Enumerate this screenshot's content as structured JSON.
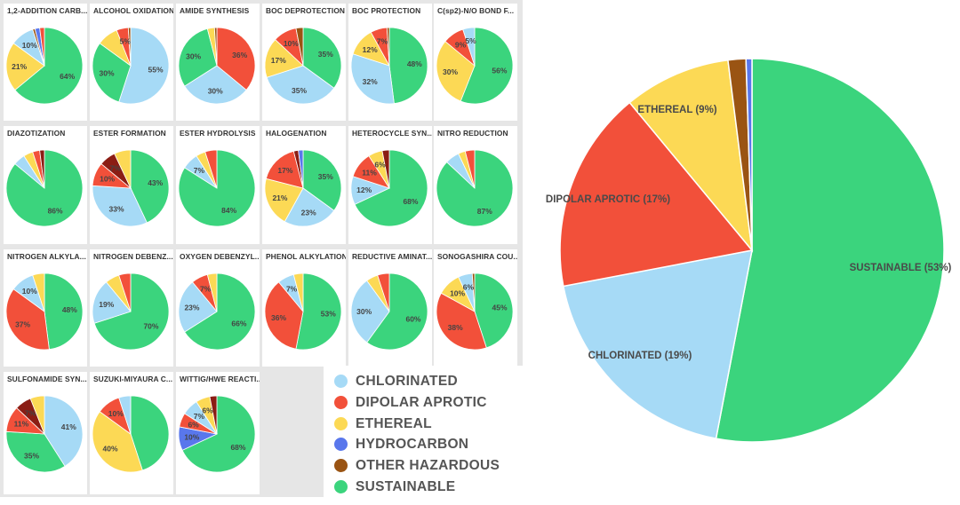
{
  "colors": {
    "chlorinated": "#a6daf6",
    "dipolar": "#f2503a",
    "ethereal": "#fcd955",
    "hydrocarbon": "#5977ec",
    "other": "#9a5413",
    "sustainable": "#3bd47d",
    "darkred": "#8b1d14"
  },
  "legend": [
    {
      "key": "chlorinated",
      "label": "CHLORINATED"
    },
    {
      "key": "dipolar",
      "label": "DIPOLAR APROTIC"
    },
    {
      "key": "ethereal",
      "label": "ETHEREAL"
    },
    {
      "key": "hydrocarbon",
      "label": "HYDROCARBON"
    },
    {
      "key": "other",
      "label": "OTHER HAZARDOUS"
    },
    {
      "key": "sustainable",
      "label": "SUSTAINABLE"
    }
  ],
  "chart_data": [
    {
      "type": "pie",
      "id": "overall",
      "slices": [
        {
          "category": "sustainable",
          "value": 53,
          "label": "SUSTAINABLE (53%)"
        },
        {
          "category": "chlorinated",
          "value": 19,
          "label": "CHLORINATED (19%)"
        },
        {
          "category": "dipolar",
          "value": 17,
          "label": "DIPOLAR APROTIC (17%)"
        },
        {
          "category": "ethereal",
          "value": 9,
          "label": "ETHEREAL (9%)"
        },
        {
          "category": "other",
          "value": 1.5,
          "label": ""
        },
        {
          "category": "hydrocarbon",
          "value": 0.5,
          "label": ""
        }
      ]
    },
    {
      "type": "pie",
      "title": "1,2-ADDITION CARB...",
      "slices": [
        {
          "category": "sustainable",
          "value": 64,
          "label": "64%"
        },
        {
          "category": "ethereal",
          "value": 21,
          "label": "21%"
        },
        {
          "category": "chlorinated",
          "value": 10,
          "label": "10%"
        },
        {
          "category": "other",
          "value": 1,
          "label": ""
        },
        {
          "category": "hydrocarbon",
          "value": 2,
          "label": ""
        },
        {
          "category": "dipolar",
          "value": 2,
          "label": ""
        }
      ]
    },
    {
      "type": "pie",
      "title": "ALCOHOL OXIDATION",
      "slices": [
        {
          "category": "chlorinated",
          "value": 55,
          "label": "55%"
        },
        {
          "category": "sustainable",
          "value": 30,
          "label": "30%"
        },
        {
          "category": "ethereal",
          "value": 9,
          "label": ""
        },
        {
          "category": "dipolar",
          "value": 5,
          "label": "5%"
        },
        {
          "category": "other",
          "value": 1,
          "label": ""
        }
      ]
    },
    {
      "type": "pie",
      "title": "AMIDE SYNTHESIS",
      "slices": [
        {
          "category": "dipolar",
          "value": 36,
          "label": "36%"
        },
        {
          "category": "chlorinated",
          "value": 30,
          "label": "30%"
        },
        {
          "category": "sustainable",
          "value": 30,
          "label": "30%"
        },
        {
          "category": "ethereal",
          "value": 3,
          "label": ""
        },
        {
          "category": "other",
          "value": 1,
          "label": ""
        }
      ]
    },
    {
      "type": "pie",
      "title": "BOC DEPROTECTION",
      "slices": [
        {
          "category": "sustainable",
          "value": 35,
          "label": "35%"
        },
        {
          "category": "chlorinated",
          "value": 35,
          "label": "35%"
        },
        {
          "category": "ethereal",
          "value": 17,
          "label": "17%"
        },
        {
          "category": "dipolar",
          "value": 10,
          "label": "10%"
        },
        {
          "category": "other",
          "value": 3,
          "label": ""
        }
      ]
    },
    {
      "type": "pie",
      "title": "BOC PROTECTION",
      "slices": [
        {
          "category": "sustainable",
          "value": 48,
          "label": "48%"
        },
        {
          "category": "chlorinated",
          "value": 32,
          "label": "32%"
        },
        {
          "category": "ethereal",
          "value": 12,
          "label": "12%"
        },
        {
          "category": "dipolar",
          "value": 7,
          "label": "7%"
        },
        {
          "category": "other",
          "value": 1,
          "label": ""
        }
      ]
    },
    {
      "type": "pie",
      "title": "C(sp2)-N/O BOND F...",
      "slices": [
        {
          "category": "sustainable",
          "value": 56,
          "label": "56%"
        },
        {
          "category": "ethereal",
          "value": 30,
          "label": "30%"
        },
        {
          "category": "dipolar",
          "value": 9,
          "label": "9%"
        },
        {
          "category": "chlorinated",
          "value": 5,
          "label": "5%"
        }
      ]
    },
    {
      "type": "pie",
      "title": "DIAZOTIZATION",
      "slices": [
        {
          "category": "sustainable",
          "value": 86,
          "label": "86%"
        },
        {
          "category": "chlorinated",
          "value": 5,
          "label": ""
        },
        {
          "category": "ethereal",
          "value": 4,
          "label": ""
        },
        {
          "category": "dipolar",
          "value": 3,
          "label": ""
        },
        {
          "category": "darkred",
          "value": 2,
          "label": ""
        }
      ]
    },
    {
      "type": "pie",
      "title": "ESTER FORMATION",
      "slices": [
        {
          "category": "sustainable",
          "value": 43,
          "label": "43%"
        },
        {
          "category": "chlorinated",
          "value": 33,
          "label": "33%"
        },
        {
          "category": "dipolar",
          "value": 10,
          "label": "10%"
        },
        {
          "category": "darkred",
          "value": 7,
          "label": "7%"
        },
        {
          "category": "ethereal",
          "value": 7,
          "label": ""
        }
      ]
    },
    {
      "type": "pie",
      "title": "ESTER HYDROLYSIS",
      "slices": [
        {
          "category": "sustainable",
          "value": 84,
          "label": "84%"
        },
        {
          "category": "chlorinated",
          "value": 7,
          "label": "7%"
        },
        {
          "category": "ethereal",
          "value": 4,
          "label": ""
        },
        {
          "category": "dipolar",
          "value": 5,
          "label": ""
        }
      ]
    },
    {
      "type": "pie",
      "title": "HALOGENATION",
      "slices": [
        {
          "category": "sustainable",
          "value": 35,
          "label": "35%"
        },
        {
          "category": "chlorinated",
          "value": 23,
          "label": "23%"
        },
        {
          "category": "ethereal",
          "value": 21,
          "label": "21%"
        },
        {
          "category": "dipolar",
          "value": 17,
          "label": "17%"
        },
        {
          "category": "darkred",
          "value": 2,
          "label": ""
        },
        {
          "category": "hydrocarbon",
          "value": 2,
          "label": ""
        }
      ]
    },
    {
      "type": "pie",
      "title": "HETEROCYCLE SYN...",
      "slices": [
        {
          "category": "sustainable",
          "value": 68,
          "label": "68%"
        },
        {
          "category": "chlorinated",
          "value": 12,
          "label": "12%"
        },
        {
          "category": "dipolar",
          "value": 11,
          "label": "11%"
        },
        {
          "category": "ethereal",
          "value": 6,
          "label": "6%"
        },
        {
          "category": "darkred",
          "value": 3,
          "label": ""
        }
      ]
    },
    {
      "type": "pie",
      "title": "NITRO REDUCTION",
      "slices": [
        {
          "category": "sustainable",
          "value": 87,
          "label": "87%"
        },
        {
          "category": "chlorinated",
          "value": 6,
          "label": ""
        },
        {
          "category": "ethereal",
          "value": 3,
          "label": ""
        },
        {
          "category": "dipolar",
          "value": 4,
          "label": ""
        }
      ]
    },
    {
      "type": "pie",
      "title": "NITROGEN ALKYLA...",
      "slices": [
        {
          "category": "sustainable",
          "value": 48,
          "label": "48%"
        },
        {
          "category": "dipolar",
          "value": 37,
          "label": "37%"
        },
        {
          "category": "chlorinated",
          "value": 10,
          "label": "10%"
        },
        {
          "category": "ethereal",
          "value": 5,
          "label": ""
        }
      ]
    },
    {
      "type": "pie",
      "title": "NITROGEN DEBENZ...",
      "slices": [
        {
          "category": "sustainable",
          "value": 70,
          "label": "70%"
        },
        {
          "category": "chlorinated",
          "value": 19,
          "label": "19%"
        },
        {
          "category": "ethereal",
          "value": 6,
          "label": ""
        },
        {
          "category": "dipolar",
          "value": 5,
          "label": ""
        }
      ]
    },
    {
      "type": "pie",
      "title": "OXYGEN DEBENZYL...",
      "slices": [
        {
          "category": "sustainable",
          "value": 66,
          "label": "66%"
        },
        {
          "category": "chlorinated",
          "value": 23,
          "label": "23%"
        },
        {
          "category": "dipolar",
          "value": 7,
          "label": "7%"
        },
        {
          "category": "ethereal",
          "value": 4,
          "label": ""
        }
      ]
    },
    {
      "type": "pie",
      "title": "PHENOL ALKYLATION",
      "slices": [
        {
          "category": "sustainable",
          "value": 53,
          "label": "53%"
        },
        {
          "category": "dipolar",
          "value": 36,
          "label": "36%"
        },
        {
          "category": "chlorinated",
          "value": 7,
          "label": "7%"
        },
        {
          "category": "ethereal",
          "value": 4,
          "label": ""
        }
      ]
    },
    {
      "type": "pie",
      "title": "REDUCTIVE AMINAT...",
      "slices": [
        {
          "category": "sustainable",
          "value": 60,
          "label": "60%"
        },
        {
          "category": "chlorinated",
          "value": 30,
          "label": "30%"
        },
        {
          "category": "ethereal",
          "value": 5,
          "label": ""
        },
        {
          "category": "dipolar",
          "value": 5,
          "label": ""
        }
      ]
    },
    {
      "type": "pie",
      "title": "SONOGASHIRA COU...",
      "slices": [
        {
          "category": "sustainable",
          "value": 45,
          "label": "45%"
        },
        {
          "category": "dipolar",
          "value": 38,
          "label": "38%"
        },
        {
          "category": "ethereal",
          "value": 10,
          "label": "10%"
        },
        {
          "category": "chlorinated",
          "value": 6,
          "label": "6%"
        },
        {
          "category": "other",
          "value": 1,
          "label": ""
        }
      ]
    },
    {
      "type": "pie",
      "title": "SULFONAMIDE SYN...",
      "slices": [
        {
          "category": "chlorinated",
          "value": 41,
          "label": "41%"
        },
        {
          "category": "sustainable",
          "value": 35,
          "label": "35%"
        },
        {
          "category": "dipolar",
          "value": 11,
          "label": "11%"
        },
        {
          "category": "darkred",
          "value": 7,
          "label": "7%"
        },
        {
          "category": "ethereal",
          "value": 6,
          "label": ""
        }
      ]
    },
    {
      "type": "pie",
      "title": "SUZUKI-MIYAURA C...",
      "slices": [
        {
          "category": "sustainable",
          "value": 45,
          "label": ""
        },
        {
          "category": "ethereal",
          "value": 40,
          "label": "40%"
        },
        {
          "category": "dipolar",
          "value": 10,
          "label": "10%"
        },
        {
          "category": "chlorinated",
          "value": 5,
          "label": ""
        }
      ]
    },
    {
      "type": "pie",
      "title": "WITTIG/HWE REACTI...",
      "slices": [
        {
          "category": "sustainable",
          "value": 68,
          "label": "68%"
        },
        {
          "category": "hydrocarbon",
          "value": 10,
          "label": "10%"
        },
        {
          "category": "dipolar",
          "value": 6,
          "label": "6%"
        },
        {
          "category": "chlorinated",
          "value": 7,
          "label": "7%"
        },
        {
          "category": "ethereal",
          "value": 6,
          "label": "6%"
        },
        {
          "category": "darkred",
          "value": 3,
          "label": ""
        }
      ]
    }
  ]
}
